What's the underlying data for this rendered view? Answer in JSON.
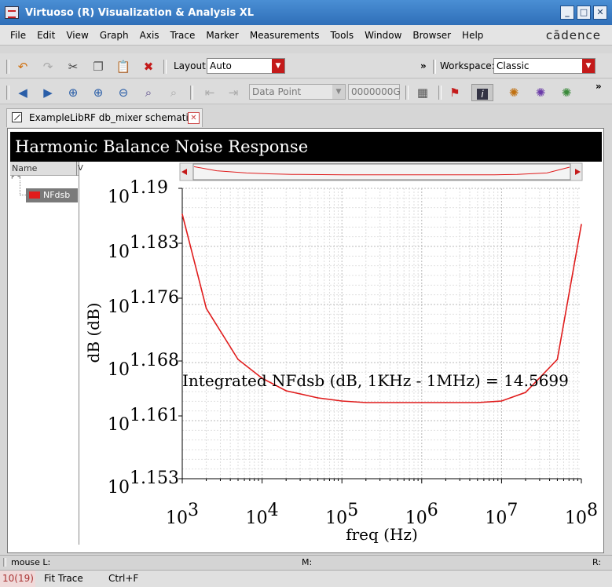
{
  "window": {
    "title": "Virtuoso (R) Visualization & Analysis XL",
    "controls": [
      "_",
      "□",
      "✕"
    ]
  },
  "menubar": {
    "items": [
      "File",
      "Edit",
      "View",
      "Graph",
      "Axis",
      "Trace",
      "Marker",
      "Measurements",
      "Tools",
      "Window",
      "Browser",
      "Help"
    ],
    "logo": "cādence"
  },
  "toolbar1": {
    "layout_label": "Layout:",
    "layout_value": "Auto",
    "workspace_label": "Workspace:",
    "workspace_value": "Classic",
    "overflow": "»"
  },
  "toolbar2": {
    "mode_value": "Data Point",
    "value_field": "0000000G",
    "overflow": "»"
  },
  "tab": {
    "label": "ExampleLibRF db_mixer schematic",
    "close": "✕"
  },
  "plot": {
    "header": "Harmonic Balance Noise Response",
    "annotation": "Integrated NFdsb (dB, 1KHz - 1MHz) = 14.5699"
  },
  "legend": {
    "header": "Name",
    "header2": "V",
    "traces": [
      {
        "name": "NFdsb",
        "color": "#e01c1c"
      }
    ]
  },
  "chart_data": {
    "type": "line",
    "xlabel": "freq (Hz)",
    "ylabel": "dB (dB)",
    "x_scale": "log",
    "y_scale": "log",
    "xlim": [
      1000,
      100000000
    ],
    "ylim_exponent": [
      1.153,
      1.19
    ],
    "x_ticks": [
      {
        "base": "10",
        "exp": "3",
        "value": 1000
      },
      {
        "base": "10",
        "exp": "4",
        "value": 10000
      },
      {
        "base": "10",
        "exp": "5",
        "value": 100000
      },
      {
        "base": "10",
        "exp": "6",
        "value": 1000000
      },
      {
        "base": "10",
        "exp": "7",
        "value": 10000000
      },
      {
        "base": "10",
        "exp": "8",
        "value": 100000000
      }
    ],
    "y_ticks": [
      {
        "base": "10",
        "exp": "1.19",
        "value": 1.19
      },
      {
        "base": "10",
        "exp": "1.183",
        "value": 1.183
      },
      {
        "base": "10",
        "exp": "1.176",
        "value": 1.176
      },
      {
        "base": "10",
        "exp": "1.168",
        "value": 1.168
      },
      {
        "base": "10",
        "exp": "1.161",
        "value": 1.161
      },
      {
        "base": "10",
        "exp": "1.153",
        "value": 1.153
      }
    ],
    "grid": true,
    "series": [
      {
        "name": "NFdsb",
        "color": "#e01c1c",
        "x": [
          1000,
          2000,
          5000,
          10000,
          20000,
          50000,
          100000,
          200000,
          500000,
          1000000,
          2000000,
          5000000,
          10000000,
          20000000,
          50000000,
          100000000
        ],
        "y_exponent": [
          1.1867,
          1.1747,
          1.1682,
          1.1658,
          1.1642,
          1.1633,
          1.1629,
          1.1627,
          1.1627,
          1.1627,
          1.1627,
          1.1627,
          1.1629,
          1.164,
          1.1682,
          1.1854
        ]
      }
    ]
  },
  "status": {
    "mouse_label": "mouse L:",
    "middle_label": "M:",
    "right_label": "R:",
    "counter": "10(19)",
    "last_cmd": "Fit Trace",
    "shortcut": "Ctrl+F"
  }
}
